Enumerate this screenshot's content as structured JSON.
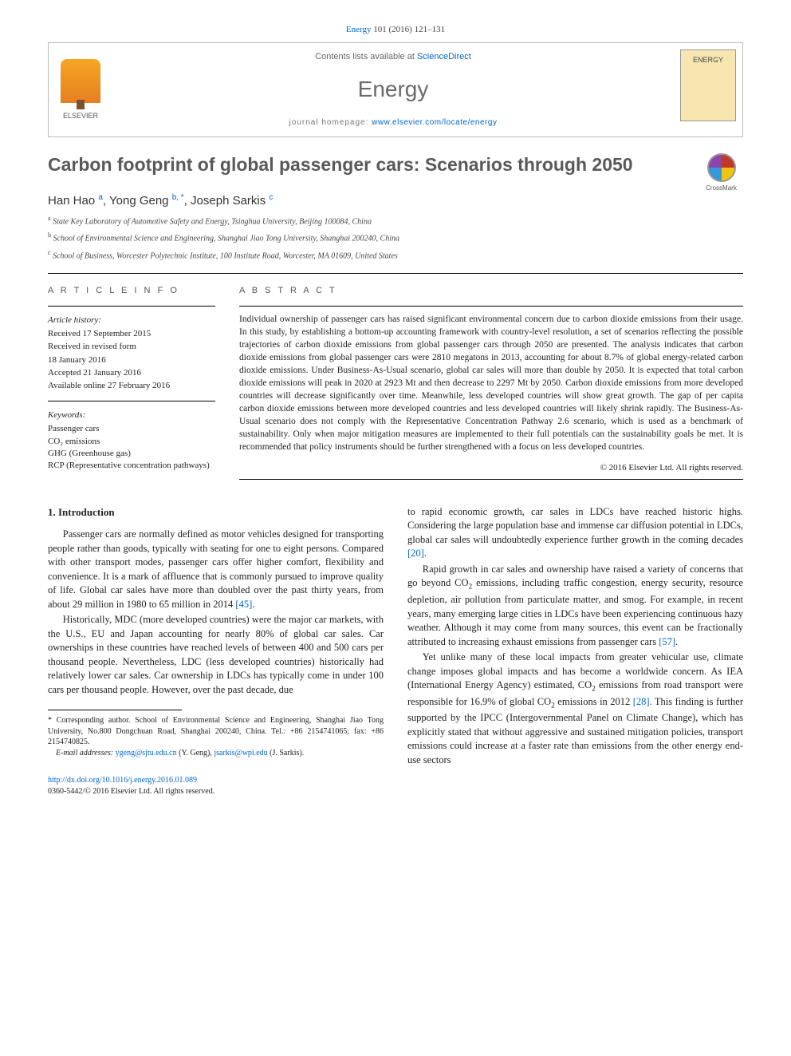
{
  "citation": {
    "journal_link": "Energy",
    "ref": " 101 (2016) 121–131"
  },
  "header": {
    "contents_prefix": "Contents lists available at ",
    "contents_link": "ScienceDirect",
    "journal": "Energy",
    "homepage_label": "journal homepage: ",
    "homepage_url": "www.elsevier.com/locate/energy",
    "publisher": "ELSEVIER",
    "cover_label": "ENERGY"
  },
  "crossmark": "CrossMark",
  "title": "Carbon footprint of global passenger cars: Scenarios through 2050",
  "authors_html": "Han Hao <sup>a</sup>, Yong Geng <sup>b, *</sup>, Joseph Sarkis <sup>c</sup>",
  "affiliations": [
    "State Key Laboratory of Automotive Safety and Energy, Tsinghua University, Beijing 100084, China",
    "School of Environmental Science and Engineering, Shanghai Jiao Tong University, Shanghai 200240, China",
    "School of Business, Worcester Polytechnic Institute, 100 Institute Road, Worcester, MA 01609, United States"
  ],
  "affil_markers": [
    "a",
    "b",
    "c"
  ],
  "article_info": {
    "heading": "A R T I C L E   I N F O",
    "history_head": "Article history:",
    "history": [
      "Received 17 September 2015",
      "Received in revised form",
      "18 January 2016",
      "Accepted 21 January 2016",
      "Available online 27 February 2016"
    ],
    "keywords_head": "Keywords:",
    "keywords": [
      "Passenger cars",
      "CO₂ emissions",
      "GHG (Greenhouse gas)",
      "RCP (Representative concentration pathways)"
    ]
  },
  "abstract": {
    "heading": "A B S T R A C T",
    "text": "Individual ownership of passenger cars has raised significant environmental concern due to carbon dioxide emissions from their usage. In this study, by establishing a bottom-up accounting framework with country-level resolution, a set of scenarios reflecting the possible trajectories of carbon dioxide emissions from global passenger cars through 2050 are presented. The analysis indicates that carbon dioxide emissions from global passenger cars were 2810 megatons in 2013, accounting for about 8.7% of global energy-related carbon dioxide emissions. Under Business-As-Usual scenario, global car sales will more than double by 2050. It is expected that total carbon dioxide emissions will peak in 2020 at 2923 Mt and then decrease to 2297 Mt by 2050. Carbon dioxide emissions from more developed countries will decrease significantly over time. Meanwhile, less developed countries will show great growth. The gap of per capita carbon dioxide emissions between more developed countries and less developed countries will likely shrink rapidly. The Business-As-Usual scenario does not comply with the Representative Concentration Pathway 2.6 scenario, which is used as a benchmark of sustainability. Only when major mitigation measures are implemented to their full potentials can the sustainability goals be met. It is recommended that policy instruments should be further strengthened with a focus on less developed countries.",
    "copyright": "© 2016 Elsevier Ltd. All rights reserved."
  },
  "body": {
    "section_heading": "1. Introduction",
    "p1": "Passenger cars are normally defined as motor vehicles designed for transporting people rather than goods, typically with seating for one to eight persons. Compared with other transport modes, passenger cars offer higher comfort, flexibility and convenience. It is a mark of affluence that is commonly pursued to improve quality of life. Global car sales have more than doubled over the past thirty years, from about 29 million in 1980 to 65 million in 2014 ",
    "p1_ref": "[45]",
    "p2": "Historically, MDC (more developed countries) were the major car markets, with the U.S., EU and Japan accounting for nearly 80% of global car sales. Car ownerships in these countries have reached levels of between 400 and 500 cars per thousand people. Nevertheless, LDC (less developed countries) historically had relatively lower car sales. Car ownership in LDCs has typically come in under 100 cars per thousand people. However, over the past decade, due",
    "p3a": "to rapid economic growth, car sales in LDCs have reached historic highs. Considering the large population base and immense car diffusion potential in LDCs, global car sales will undoubtedly experience further growth in the coming decades ",
    "p3_ref": "[20]",
    "p4a": "Rapid growth in car sales and ownership have raised a variety of concerns that go beyond CO",
    "p4b": " emissions, including traffic congestion, energy security, resource depletion, air pollution from particulate matter, and smog. For example, in recent years, many emerging large cities in LDCs have been experiencing continuous hazy weather. Although it may come from many sources, this event can be fractionally attributed to increasing exhaust emissions from passenger cars ",
    "p4_ref": "[57]",
    "p5a": "Yet unlike many of these local impacts from greater vehicular use, climate change imposes global impacts and has become a worldwide concern. As IEA (International Energy Agency) estimated, CO",
    "p5b": " emissions from road transport were responsible for 16.9% of global CO",
    "p5c": " emissions in 2012 ",
    "p5_ref": "[28]",
    "p5d": ". This finding is further supported by the IPCC (Intergovernmental Panel on Climate Change), which has explicitly stated that without aggressive and sustained mitigation policies, transport emissions could increase at a faster rate than emissions from the other energy end-use sectors"
  },
  "footnote": {
    "corr": "* Corresponding author. School of Environmental Science and Engineering, Shanghai Jiao Tong University, No.800 Dongchuan Road, Shanghai 200240, China. Tel.: +86 2154741065; fax: +86 2154740825.",
    "email_label": "E-mail addresses: ",
    "email1": "ygeng@sjtu.edu.cn",
    "email1_who": " (Y. Geng), ",
    "email2": "jsarkis@wpi.edu",
    "email2_who": " (J. Sarkis)."
  },
  "doi": {
    "url": "http://dx.doi.org/10.1016/j.energy.2016.01.089",
    "issn": "0360-5442/© 2016 Elsevier Ltd. All rights reserved."
  },
  "colors": {
    "link": "#0066cc",
    "text": "#222222",
    "heading_gray": "#595959"
  }
}
